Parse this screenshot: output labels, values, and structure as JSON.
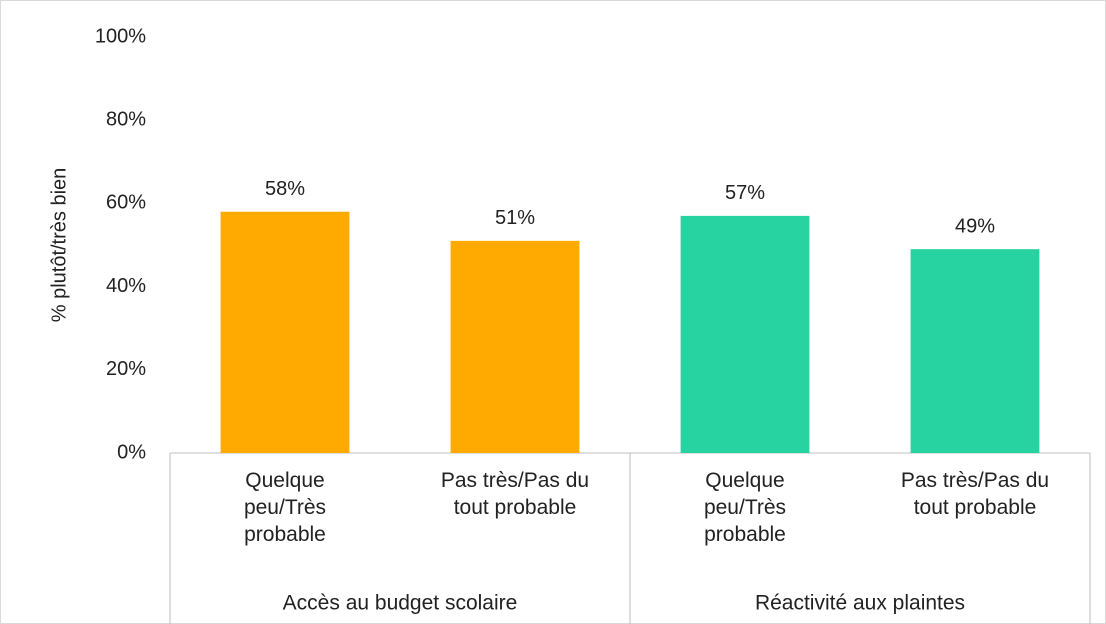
{
  "chart_data": {
    "type": "bar",
    "y_label": "% plutôt/très bien",
    "categories": [
      "Quelque peu/Très probable",
      "Pas très/Pas du tout probable",
      "Quelque peu/Très probable",
      "Pas très/Pas du tout probable"
    ],
    "groups": [
      "Accès au budget scolaire",
      "Réactivité aux plaintes"
    ],
    "values": [
      58,
      51,
      57,
      49
    ],
    "value_labels": [
      "58%",
      "51%",
      "57%",
      "49%"
    ],
    "colors": [
      "#ffaa00",
      "#ffaa00",
      "#26d3a1",
      "#26d3a1"
    ],
    "ylim": [
      0,
      100
    ],
    "yticks": [
      {
        "value": 0,
        "label": "0%"
      },
      {
        "value": 20,
        "label": "20%"
      },
      {
        "value": 40,
        "label": "40%"
      },
      {
        "value": 60,
        "label": "60%"
      },
      {
        "value": 80,
        "label": "80%"
      },
      {
        "value": 100,
        "label": "100%"
      }
    ],
    "grid": false
  }
}
